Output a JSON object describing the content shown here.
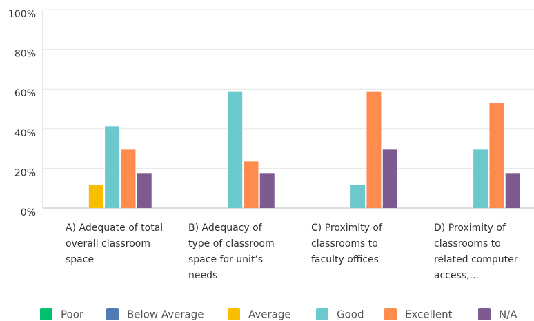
{
  "chart_data": {
    "type": "bar",
    "categories": [
      "A) Adequate of total overall classroom space",
      "B) Adequacy of type of classroom space for unit’s needs",
      "C) Proximity of classrooms to faculty offices",
      "D) Proximity of classrooms to related computer access,..."
    ],
    "series": [
      {
        "name": "Poor",
        "color": "#00bf6f",
        "values": [
          0,
          0,
          0,
          0
        ]
      },
      {
        "name": "Below Average",
        "color": "#507cb6",
        "values": [
          0,
          0,
          0,
          0
        ]
      },
      {
        "name": "Average",
        "color": "#f9be00",
        "values": [
          11.8,
          0,
          0,
          0
        ]
      },
      {
        "name": "Good",
        "color": "#6bc8cd",
        "values": [
          41.2,
          58.8,
          11.8,
          29.4
        ]
      },
      {
        "name": "Excellent",
        "color": "#ff8b4f",
        "values": [
          29.4,
          23.5,
          58.8,
          52.9
        ]
      },
      {
        "name": "N/A",
        "color": "#7d5b91",
        "values": [
          17.6,
          17.6,
          29.4,
          17.6
        ]
      }
    ],
    "ylim": [
      0,
      100
    ],
    "yticks": [
      {
        "value": 0,
        "label": "0%"
      },
      {
        "value": 20,
        "label": "20%"
      },
      {
        "value": 40,
        "label": "40%"
      },
      {
        "value": 60,
        "label": "60%"
      },
      {
        "value": 80,
        "label": "80%"
      },
      {
        "value": 100,
        "label": "100%"
      }
    ],
    "grid": true,
    "legend": "bottom"
  }
}
